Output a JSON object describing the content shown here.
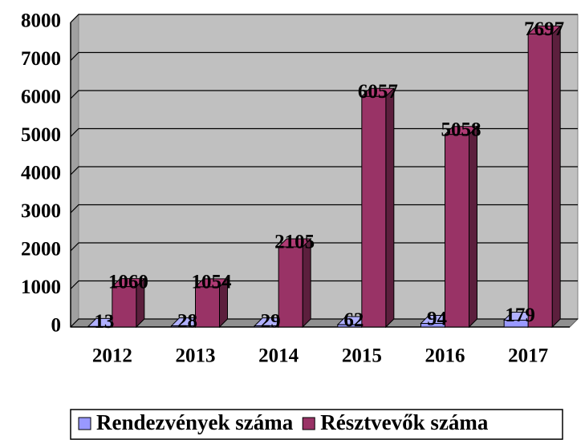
{
  "chart_data": {
    "type": "bar3d",
    "categories": [
      "2012",
      "2013",
      "2014",
      "2015",
      "2016",
      "2017"
    ],
    "series": [
      {
        "name": "Rendezvények száma",
        "color": "#9999ff",
        "values": [
          13,
          28,
          29,
          62,
          94,
          179
        ]
      },
      {
        "name": "Résztvevők száma",
        "color": "#993366",
        "values": [
          1060,
          1054,
          2105,
          6057,
          5058,
          7697
        ]
      }
    ],
    "ylim": [
      0,
      8000
    ],
    "yticks": [
      0,
      1000,
      2000,
      3000,
      4000,
      5000,
      6000,
      7000,
      8000
    ],
    "grid": true,
    "legend": "bottom"
  }
}
